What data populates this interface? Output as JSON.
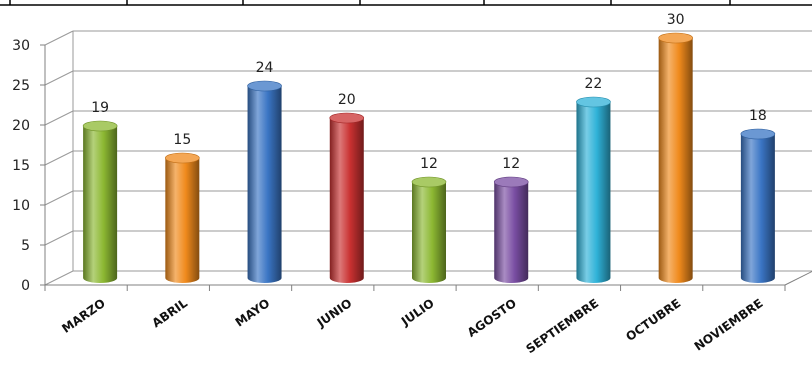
{
  "chart_data": {
    "type": "bar",
    "categories": [
      "MARZO",
      "ABRIL",
      "MAYO",
      "JUNIO",
      "JULIO",
      "AGOSTO",
      "SEPTIEMBRE",
      "OCTUBRE",
      "NOVIEMBRE"
    ],
    "values": [
      19,
      15,
      24,
      20,
      12,
      12,
      22,
      30,
      18
    ],
    "colors": [
      "#8cb832",
      "#f08a1c",
      "#3a75c4",
      "#c93131",
      "#8cb832",
      "#7a4ea3",
      "#2fb2d8",
      "#f08a1c",
      "#3a75c4"
    ],
    "yticks": [
      "0",
      "5",
      "10",
      "15",
      "20",
      "25",
      "30"
    ],
    "ylim": [
      0,
      30
    ],
    "grid": true,
    "legend": "none",
    "style": "3d-cylinder",
    "title": "",
    "xlabel": "",
    "ylabel": ""
  }
}
